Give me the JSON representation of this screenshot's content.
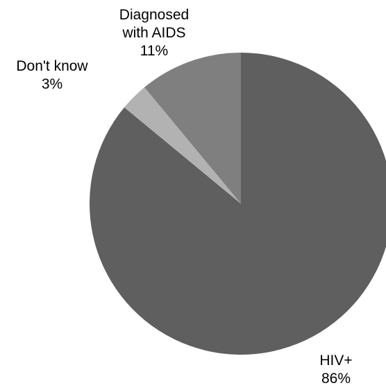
{
  "chart_data": {
    "type": "pie",
    "title": "",
    "start": "12 o'clock",
    "direction": "clockwise",
    "slices": [
      {
        "name": "HIV+",
        "value": 86,
        "value_label": "86%",
        "label_lines": [
          "HIV+",
          "86%"
        ],
        "color": "#5f5f5f"
      },
      {
        "name": "Don't know",
        "value": 3,
        "value_label": "3%",
        "label_lines": [
          "Don't know",
          "3%"
        ],
        "color": "#b2b2b2"
      },
      {
        "name": "Diagnosed with AIDS",
        "value": 11,
        "value_label": "11%",
        "label_lines": [
          "Diagnosed",
          "with AIDS",
          "11%"
        ],
        "color": "#7f7f7f"
      }
    ]
  }
}
